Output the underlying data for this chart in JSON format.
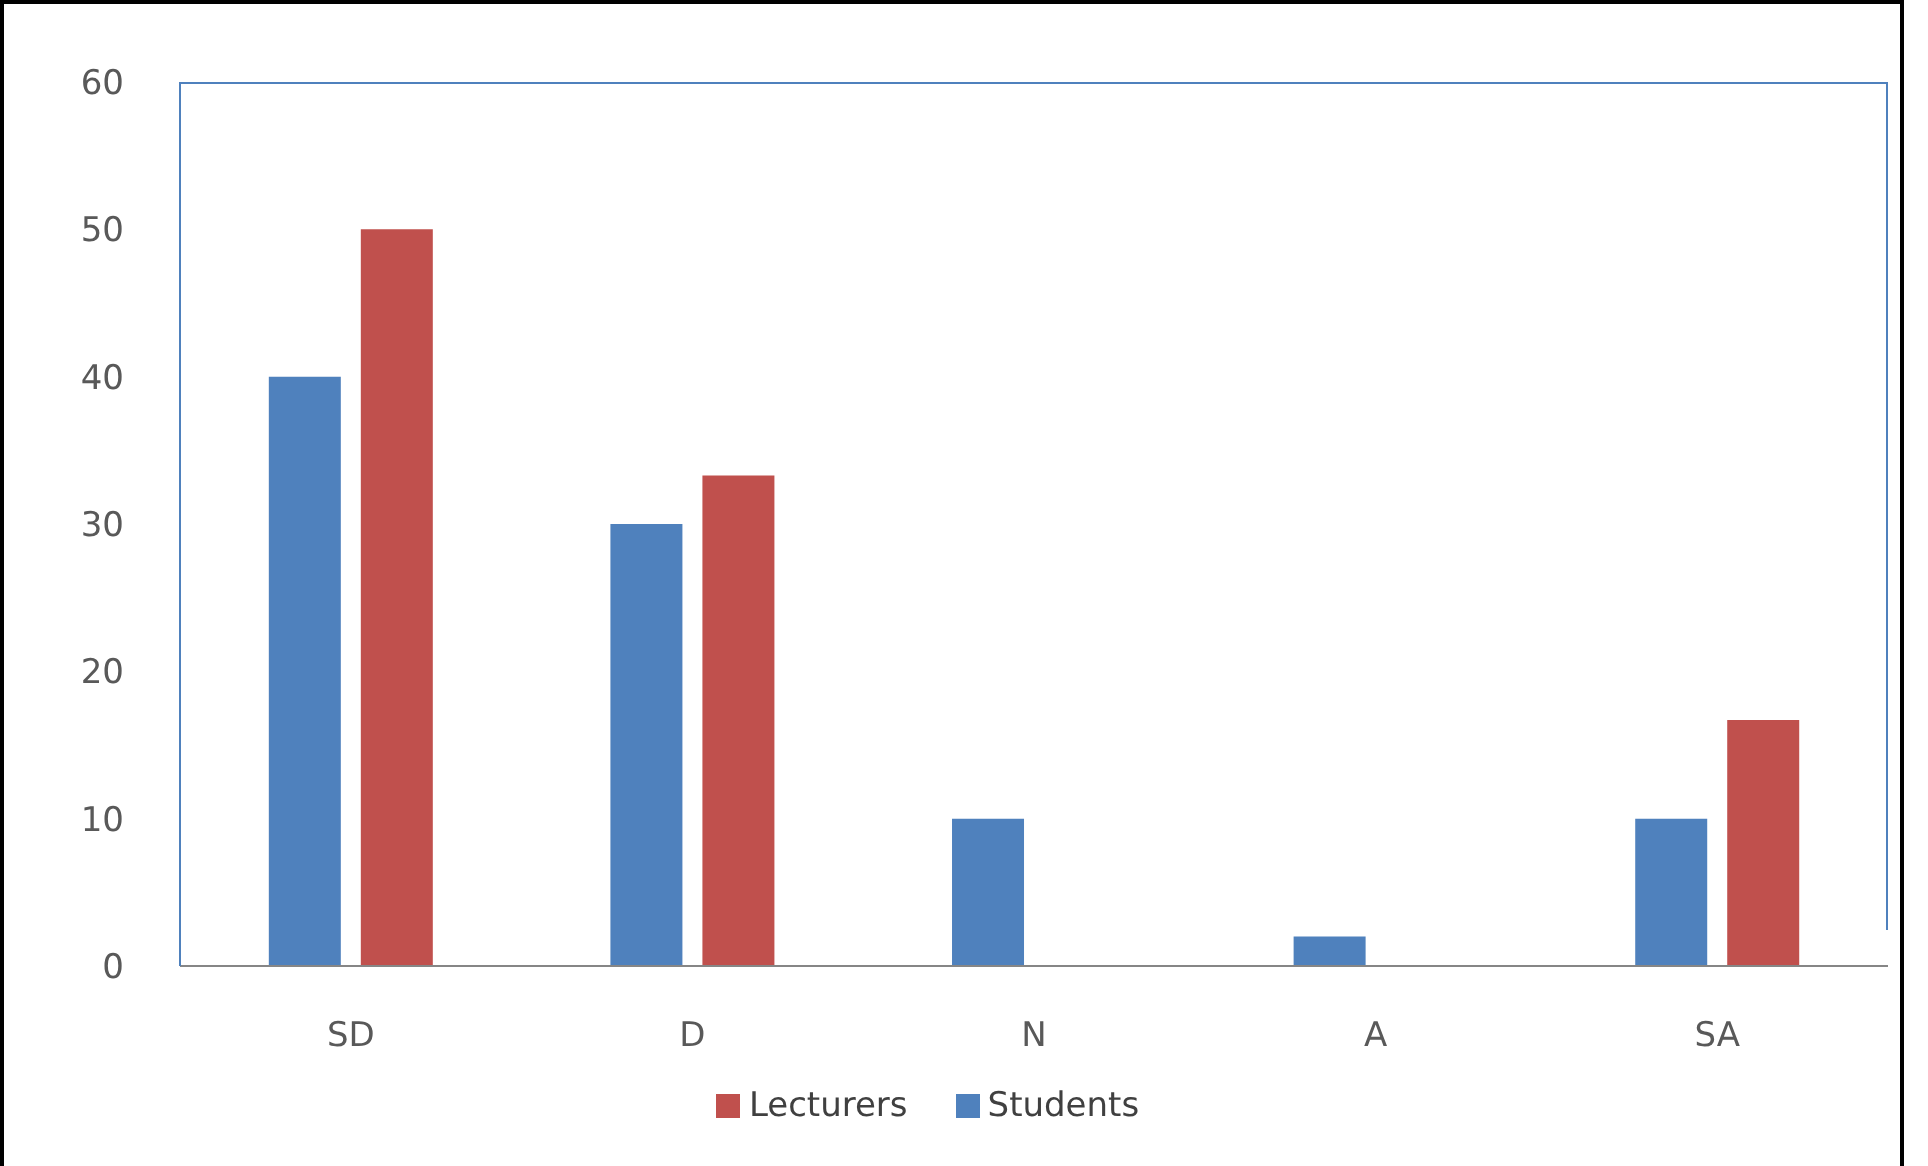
{
  "chart_data": {
    "type": "bar",
    "categories": [
      "SD",
      "D",
      "N",
      "A",
      "SA"
    ],
    "series": [
      {
        "name": "Students",
        "color": "#4f81bd",
        "values": [
          40,
          30,
          10,
          2,
          10
        ]
      },
      {
        "name": "Lecturers",
        "color": "#c0504d",
        "values": [
          50,
          33.3,
          0,
          0,
          16.7
        ]
      }
    ],
    "ylim": [
      0,
      60
    ],
    "yticks": [
      0,
      10,
      20,
      30,
      40,
      50,
      60
    ],
    "grid": false,
    "legend": "bottom"
  }
}
